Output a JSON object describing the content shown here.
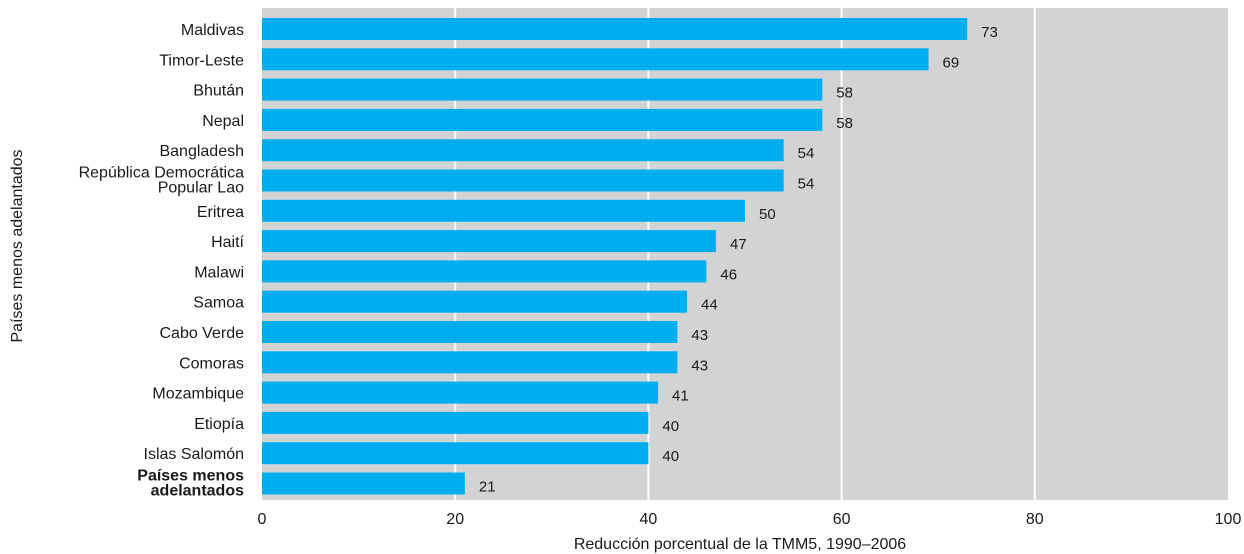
{
  "chart_data": {
    "type": "bar",
    "orientation": "horizontal",
    "title": "",
    "xlabel": "Reducción porcentual de la TMM5, 1990–2006",
    "ylabel": "Países menos adelantados",
    "xlim": [
      0,
      100
    ],
    "xticks": [
      "0",
      "20",
      "40",
      "60",
      "80",
      "100"
    ],
    "grid": true,
    "categories": [
      [
        "Maldivas"
      ],
      [
        "Timor-Leste"
      ],
      [
        "Bhután"
      ],
      [
        "Nepal"
      ],
      [
        "Bangladesh"
      ],
      [
        "República Democrática",
        "Popular Lao"
      ],
      [
        "Eritrea"
      ],
      [
        "Haití"
      ],
      [
        "Malawi"
      ],
      [
        "Samoa"
      ],
      [
        "Cabo Verde"
      ],
      [
        "Comoras"
      ],
      [
        "Mozambique"
      ],
      [
        "Etiopía"
      ],
      [
        "Islas Salomón"
      ],
      [
        "Países menos",
        "adelantados"
      ]
    ],
    "bold_categories": [
      15
    ],
    "values": [
      73,
      69,
      58,
      58,
      54,
      54,
      50,
      47,
      46,
      44,
      43,
      43,
      41,
      40,
      40,
      21
    ],
    "colors": {
      "bar": "#00AEEF",
      "plot_background": "#D2D3D5",
      "gridline": "#FFFFFF"
    }
  }
}
